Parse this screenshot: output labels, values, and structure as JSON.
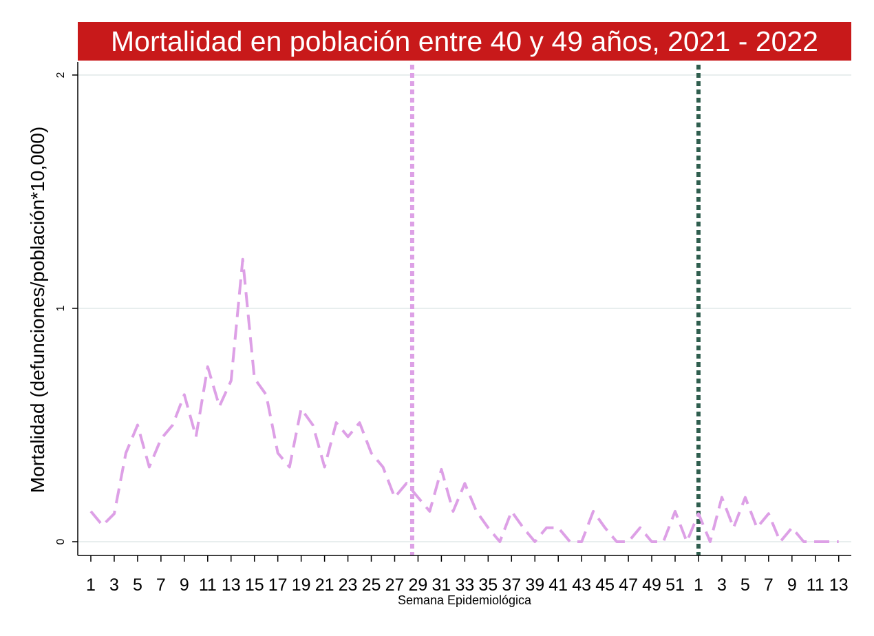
{
  "chart_data": {
    "type": "line",
    "title": "Mortalidad en población entre 40 y 49 años, 2021 - 2022",
    "xlabel": "Semana Epidemiológica",
    "ylabel": "Mortalidad (defunciones/población*10,000)",
    "ylim": [
      0,
      2
    ],
    "y_ticks": [
      0,
      1,
      2
    ],
    "grid": true,
    "x_ticks": [
      "1",
      "3",
      "5",
      "7",
      "9",
      "11",
      "13",
      "15",
      "17",
      "19",
      "21",
      "23",
      "25",
      "27",
      "29",
      "31",
      "33",
      "35",
      "37",
      "39",
      "41",
      "43",
      "45",
      "47",
      "49",
      "51",
      "1",
      "3",
      "5",
      "7",
      "9",
      "11",
      "13"
    ],
    "x": [
      "1",
      "2",
      "3",
      "4",
      "5",
      "6",
      "7",
      "8",
      "9",
      "10",
      "11",
      "12",
      "13",
      "14",
      "15",
      "16",
      "17",
      "18",
      "19",
      "20",
      "21",
      "22",
      "23",
      "24",
      "25",
      "26",
      "27",
      "28",
      "29",
      "30",
      "31",
      "32",
      "33",
      "34",
      "35",
      "36",
      "37",
      "38",
      "39",
      "40",
      "41",
      "42",
      "43",
      "44",
      "45",
      "46",
      "47",
      "48",
      "49",
      "50",
      "51",
      "52",
      "1",
      "2",
      "3",
      "4",
      "5",
      "6",
      "7",
      "8",
      "9",
      "10",
      "11",
      "12",
      "13"
    ],
    "series": [
      {
        "color": "#dda0e6",
        "style": "dashed",
        "values": [
          0.13,
          0.07,
          0.12,
          0.38,
          0.5,
          0.32,
          0.44,
          0.5,
          0.63,
          0.45,
          0.75,
          0.58,
          0.69,
          1.21,
          0.7,
          0.63,
          0.38,
          0.32,
          0.57,
          0.5,
          0.32,
          0.51,
          0.45,
          0.51,
          0.38,
          0.32,
          0.19,
          0.25,
          0.19,
          0.13,
          0.31,
          0.13,
          0.25,
          0.13,
          0.06,
          0.0,
          0.13,
          0.06,
          0.0,
          0.06,
          0.06,
          0.0,
          0.0,
          0.13,
          0.06,
          0.0,
          0.0,
          0.06,
          0.0,
          0.0,
          0.13,
          0.0,
          0.12,
          0.0,
          0.19,
          0.06,
          0.19,
          0.06,
          0.12,
          0.0,
          0.06,
          0.0,
          0.0,
          0.0,
          0.0
        ]
      }
    ],
    "reference_lines": [
      {
        "at_x_index": 27.5,
        "color": "#dda0e6",
        "style": "dotted"
      },
      {
        "at_x_index": 52,
        "color": "#2f5e4e",
        "style": "dotted"
      }
    ]
  }
}
